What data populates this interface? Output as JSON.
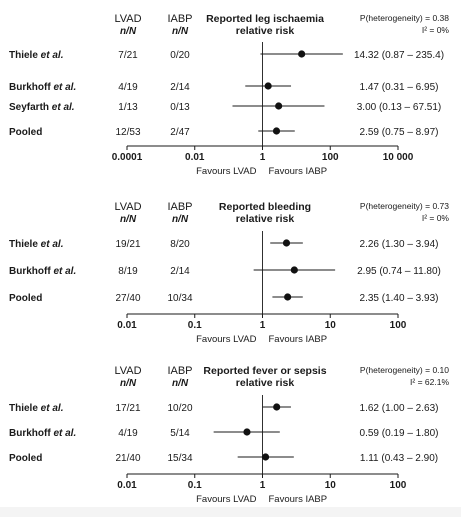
{
  "chart_data": [
    {
      "type": "forest",
      "title": "Reported leg ischaemia\nrelative risk",
      "heterogeneity": {
        "p_label": "P(heterogeneity) = 0.38",
        "i2_label": "I² = 0%"
      },
      "columns": [
        {
          "name": "LVAD",
          "sub": "n/N"
        },
        {
          "name": "IABP",
          "sub": "n/N"
        }
      ],
      "x_scale": "log",
      "xlim": [
        0.0001,
        10000
      ],
      "x_ticks": [
        0.0001,
        0.01,
        1,
        100,
        10000
      ],
      "x_tick_labels": [
        "0.0001",
        "0.01",
        "1",
        "100",
        "10 000"
      ],
      "favours_left": "Favours LVAD",
      "favours_right": "Favours IABP",
      "rows": [
        {
          "study": "Thiele et al.",
          "lvad": "7/21",
          "iabp": "0/20",
          "rr": 14.32,
          "lo": 0.87,
          "hi": 235.4,
          "ci_label": "14.32 (0.87 – 235.4)"
        },
        {
          "study": "Burkhoff et al.",
          "lvad": "4/19",
          "iabp": "2/14",
          "rr": 1.47,
          "lo": 0.31,
          "hi": 6.95,
          "ci_label": "1.47 (0.31 – 6.95)"
        },
        {
          "study": "Seyfarth et al.",
          "lvad": "1/13",
          "iabp": "0/13",
          "rr": 3.0,
          "lo": 0.13,
          "hi": 67.51,
          "ci_label": "3.00 (0.13 – 67.51)"
        },
        {
          "study": "Pooled",
          "lvad": "12/53",
          "iabp": "2/47",
          "rr": 2.59,
          "lo": 0.75,
          "hi": 8.97,
          "ci_label": "2.59 (0.75 – 8.97)"
        }
      ]
    },
    {
      "type": "forest",
      "title": "Reported bleeding\nrelative risk",
      "heterogeneity": {
        "p_label": "P(heterogeneity) = 0.73",
        "i2_label": "I² = 0%"
      },
      "columns": [
        {
          "name": "LVAD",
          "sub": "n/N"
        },
        {
          "name": "IABP",
          "sub": "n/N"
        }
      ],
      "x_scale": "log",
      "xlim": [
        0.01,
        100
      ],
      "x_ticks": [
        0.01,
        0.1,
        1,
        10,
        100
      ],
      "x_tick_labels": [
        "0.01",
        "0.1",
        "1",
        "10",
        "100"
      ],
      "favours_left": "Favours LVAD",
      "favours_right": "Favours IABP",
      "rows": [
        {
          "study": "Thiele et al.",
          "lvad": "19/21",
          "iabp": "8/20",
          "rr": 2.26,
          "lo": 1.3,
          "hi": 3.94,
          "ci_label": "2.26 (1.30 – 3.94)"
        },
        {
          "study": "Burkhoff et al.",
          "lvad": "8/19",
          "iabp": "2/14",
          "rr": 2.95,
          "lo": 0.74,
          "hi": 11.8,
          "ci_label": "2.95 (0.74 – 11.80)"
        },
        {
          "study": "Pooled",
          "lvad": "27/40",
          "iabp": "10/34",
          "rr": 2.35,
          "lo": 1.4,
          "hi": 3.93,
          "ci_label": "2.35 (1.40 – 3.93)"
        }
      ]
    },
    {
      "type": "forest",
      "title": "Reported fever or sepsis\nrelative risk",
      "heterogeneity": {
        "p_label": "P(heterogeneity) = 0.10",
        "i2_label": "I² = 62.1%"
      },
      "columns": [
        {
          "name": "LVAD",
          "sub": "n/N"
        },
        {
          "name": "IABP",
          "sub": "n/N"
        }
      ],
      "x_scale": "log",
      "xlim": [
        0.01,
        100
      ],
      "x_ticks": [
        0.01,
        0.1,
        1,
        10,
        100
      ],
      "x_tick_labels": [
        "0.01",
        "0.1",
        "1",
        "10",
        "100"
      ],
      "favours_left": "Favours LVAD",
      "favours_right": "Favours IABP",
      "rows": [
        {
          "study": "Thiele et al.",
          "lvad": "17/21",
          "iabp": "10/20",
          "rr": 1.62,
          "lo": 1.0,
          "hi": 2.63,
          "ci_label": "1.62 (1.00 – 2.63)"
        },
        {
          "study": "Burkhoff et al.",
          "lvad": "4/19",
          "iabp": "5/14",
          "rr": 0.59,
          "lo": 0.19,
          "hi": 1.8,
          "ci_label": "0.59 (0.19 – 1.80)"
        },
        {
          "study": "Pooled",
          "lvad": "21/40",
          "iabp": "15/34",
          "rr": 1.11,
          "lo": 0.43,
          "hi": 2.9,
          "ci_label": "1.11 (0.43 – 2.90)"
        }
      ]
    }
  ]
}
